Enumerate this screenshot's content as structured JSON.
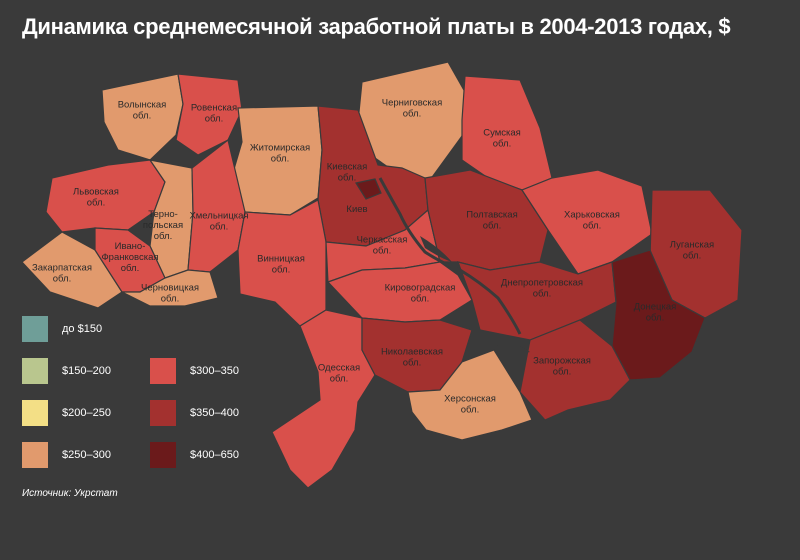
{
  "title": "Динамика среднемесячной заработной платы в 2004-2013 годах, $",
  "source": "Источник: Укрстат",
  "legend": [
    {
      "label": "до $150",
      "color": "#6f9e98"
    },
    {
      "label": "$150–200",
      "color": "#b9c68e"
    },
    {
      "label": "$200–250",
      "color": "#f3df86"
    },
    {
      "label": "$250–300",
      "color": "#e19a6d"
    },
    {
      "label": "$300–350",
      "color": "#d9504b"
    },
    {
      "label": "$350–400",
      "color": "#a3312f"
    },
    {
      "label": "$400–650",
      "color": "#6b1a1b"
    }
  ],
  "regions": [
    {
      "name": "Волынская обл.",
      "label_lines": [
        "Волынская",
        "обл."
      ],
      "bracket": "$250–300",
      "color": "#e19a6d"
    },
    {
      "name": "Ровенская обл.",
      "label_lines": [
        "Ровенская",
        "обл."
      ],
      "bracket": "$300–350",
      "color": "#d9504b"
    },
    {
      "name": "Житомирская обл.",
      "label_lines": [
        "Житомирская",
        "обл."
      ],
      "bracket": "$250–300",
      "color": "#e19a6d"
    },
    {
      "name": "Черниговская обл.",
      "label_lines": [
        "Черниговская",
        "обл."
      ],
      "bracket": "$250–300",
      "color": "#e19a6d"
    },
    {
      "name": "Сумская обл.",
      "label_lines": [
        "Сумская",
        "обл."
      ],
      "bracket": "$300–350",
      "color": "#d9504b"
    },
    {
      "name": "Киевская обл.",
      "label_lines": [
        "Киевская",
        "обл."
      ],
      "bracket": "$350–400",
      "color": "#a3312f"
    },
    {
      "name": "Киев",
      "label_lines": [
        "Киев"
      ],
      "bracket": "$400–650",
      "color": "#6b1a1b"
    },
    {
      "name": "Львовская обл.",
      "label_lines": [
        "Львовская",
        "обл."
      ],
      "bracket": "$300–350",
      "color": "#d9504b"
    },
    {
      "name": "Тернопольская обл.",
      "label_lines": [
        "Терно-",
        "польская",
        "обл."
      ],
      "bracket": "$250–300",
      "color": "#e19a6d"
    },
    {
      "name": "Хмельницкая обл.",
      "label_lines": [
        "Хмельницкая",
        "обл."
      ],
      "bracket": "$300–350",
      "color": "#d9504b"
    },
    {
      "name": "Винницкая обл.",
      "label_lines": [
        "Винницкая",
        "обл."
      ],
      "bracket": "$300–350",
      "color": "#d9504b"
    },
    {
      "name": "Черкасская обл.",
      "label_lines": [
        "Черкасская",
        "обл."
      ],
      "bracket": "$300–350",
      "color": "#d9504b"
    },
    {
      "name": "Полтавская обл.",
      "label_lines": [
        "Полтавская",
        "обл."
      ],
      "bracket": "$350–400",
      "color": "#a3312f"
    },
    {
      "name": "Харьковская обл.",
      "label_lines": [
        "Харьковская",
        "обл."
      ],
      "bracket": "$300–350",
      "color": "#d9504b"
    },
    {
      "name": "Луганская обл.",
      "label_lines": [
        "Луганская",
        "обл."
      ],
      "bracket": "$350–400",
      "color": "#a3312f"
    },
    {
      "name": "Закарпатская обл.",
      "label_lines": [
        "Закарпатская",
        "обл."
      ],
      "bracket": "$250–300",
      "color": "#e19a6d"
    },
    {
      "name": "Ивано-Франковская обл.",
      "label_lines": [
        "Ивано-",
        "Франковская",
        "обл."
      ],
      "bracket": "$300–350",
      "color": "#d9504b"
    },
    {
      "name": "Черновицкая обл.",
      "label_lines": [
        "Черновицкая",
        "обл."
      ],
      "bracket": "$250–300",
      "color": "#e19a6d"
    },
    {
      "name": "Кировоградская обл.",
      "label_lines": [
        "Кировоградская",
        "обл."
      ],
      "bracket": "$300–350",
      "color": "#d9504b"
    },
    {
      "name": "Днепропетровская обл.",
      "label_lines": [
        "Днепропетровская",
        "обл."
      ],
      "bracket": "$350–400",
      "color": "#a3312f"
    },
    {
      "name": "Донецкая обл.",
      "label_lines": [
        "Донецкая",
        "обл."
      ],
      "bracket": "$400–650",
      "color": "#6b1a1b"
    },
    {
      "name": "Одесская обл.",
      "label_lines": [
        "Одесская",
        "обл."
      ],
      "bracket": "$300–350",
      "color": "#d9504b"
    },
    {
      "name": "Николаевская обл.",
      "label_lines": [
        "Николаевская",
        "обл."
      ],
      "bracket": "$350–400",
      "color": "#a3312f"
    },
    {
      "name": "Запорожская обл.",
      "label_lines": [
        "Запорожская",
        "обл."
      ],
      "bracket": "$350–400",
      "color": "#a3312f"
    },
    {
      "name": "Херсонская обл.",
      "label_lines": [
        "Херсонская",
        "обл."
      ],
      "bracket": "$250–300",
      "color": "#e19a6d"
    }
  ]
}
